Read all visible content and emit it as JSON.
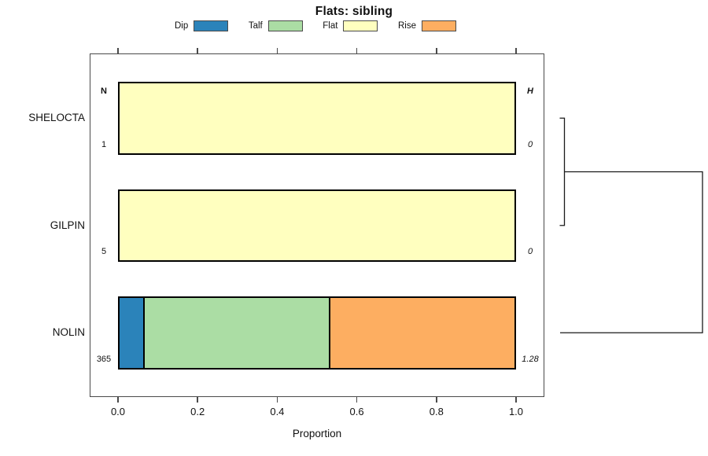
{
  "title": "Flats: sibling",
  "chart_data": {
    "type": "bar",
    "orientation": "horizontal-stacked",
    "title": "Flats: sibling",
    "xlabel": "Proportion",
    "xlim": [
      0.0,
      1.0
    ],
    "xticks": [
      "0.0",
      "0.2",
      "0.4",
      "0.6",
      "0.8",
      "1.0"
    ],
    "grid": false,
    "legend_position": "top",
    "legend": [
      {
        "label": "Dip",
        "color": "#2B83BA"
      },
      {
        "label": "Talf",
        "color": "#ABDDA4"
      },
      {
        "label": "Flat",
        "color": "#FFFFBF"
      },
      {
        "label": "Rise",
        "color": "#FDAE61"
      }
    ],
    "left_count_header": "N",
    "right_height_header": "H",
    "rows": [
      {
        "label": "SHELOCTA",
        "n": "1",
        "h": "0",
        "segments": [
          {
            "category": "Flat",
            "value": 1.0
          }
        ]
      },
      {
        "label": "GILPIN",
        "n": "5",
        "h": "0",
        "segments": [
          {
            "category": "Flat",
            "value": 1.0
          }
        ]
      },
      {
        "label": "NOLIN",
        "n": "365",
        "h": "1.28",
        "segments": [
          {
            "category": "Dip",
            "value": 0.06
          },
          {
            "category": "Talf",
            "value": 0.47
          },
          {
            "category": "Rise",
            "value": 0.47
          }
        ]
      }
    ],
    "dendrogram": {
      "merges": [
        {
          "joins": [
            "SHELOCTA",
            "GILPIN"
          ],
          "height": 0
        },
        {
          "joins": [
            "merge-0",
            "NOLIN"
          ],
          "height": 1.28
        }
      ]
    }
  }
}
